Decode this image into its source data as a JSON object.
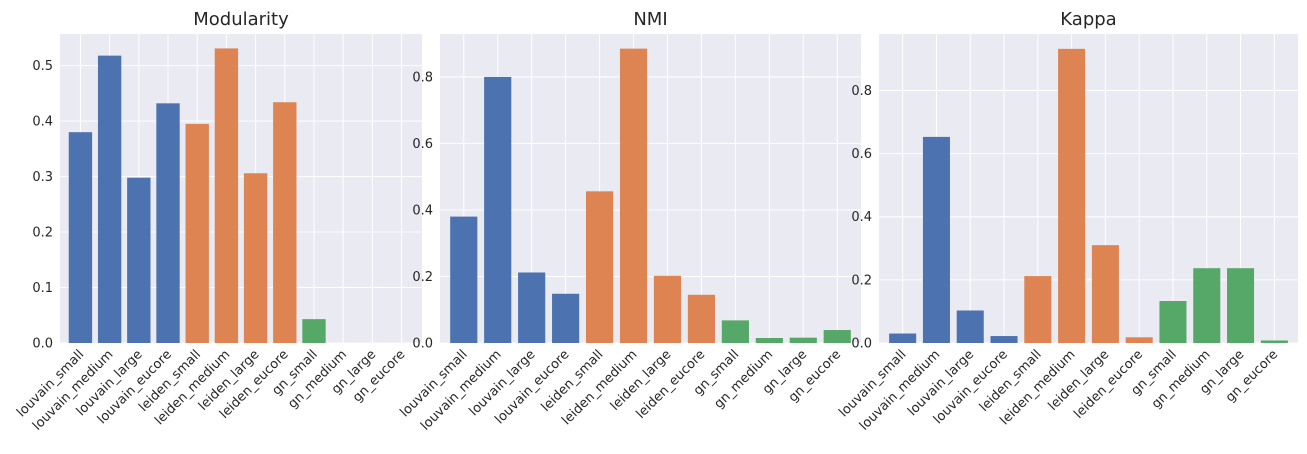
{
  "colors": {
    "plot_background": "#eaeaf2",
    "grid": "#ffffff",
    "louvain": "#4c72b0",
    "leiden": "#dd8452",
    "gn": "#55a868"
  },
  "chart_data": [
    {
      "type": "bar",
      "title": "Modularity",
      "xlabel": "",
      "ylabel": "",
      "categories": [
        "louvain_small",
        "louvain_medium",
        "louvain_large",
        "louvain_eucore",
        "leiden_small",
        "leiden_medium",
        "leiden_large",
        "leiden_eucore",
        "gn_small",
        "gn_medium",
        "gn_large",
        "gn_eucore"
      ],
      "values": [
        0.38,
        0.518,
        0.298,
        0.432,
        0.395,
        0.531,
        0.306,
        0.434,
        0.043,
        0.0,
        0.0,
        0.0
      ],
      "bar_colors": [
        "louvain",
        "louvain",
        "louvain",
        "louvain",
        "leiden",
        "leiden",
        "leiden",
        "leiden",
        "gn",
        "gn",
        "gn",
        "gn"
      ],
      "ylim": [
        0,
        0.557
      ],
      "yticks": [
        0.0,
        0.1,
        0.2,
        0.3,
        0.4,
        0.5
      ],
      "grid": true
    },
    {
      "type": "bar",
      "title": "NMI",
      "xlabel": "",
      "ylabel": "",
      "categories": [
        "louvain_small",
        "louvain_medium",
        "louvain_large",
        "louvain_eucore",
        "leiden_small",
        "leiden_medium",
        "leiden_large",
        "leiden_eucore",
        "gn_small",
        "gn_medium",
        "gn_large",
        "gn_eucore"
      ],
      "values": [
        0.38,
        0.8,
        0.212,
        0.148,
        0.456,
        0.885,
        0.202,
        0.145,
        0.068,
        0.015,
        0.016,
        0.039
      ],
      "bar_colors": [
        "louvain",
        "louvain",
        "louvain",
        "louvain",
        "leiden",
        "leiden",
        "leiden",
        "leiden",
        "gn",
        "gn",
        "gn",
        "gn"
      ],
      "ylim": [
        0,
        0.929
      ],
      "yticks": [
        0.0,
        0.2,
        0.4,
        0.6,
        0.8
      ],
      "grid": true
    },
    {
      "type": "bar",
      "title": "Kappa",
      "xlabel": "",
      "ylabel": "",
      "categories": [
        "louvain_small",
        "louvain_medium",
        "louvain_large",
        "louvain_eucore",
        "leiden_small",
        "leiden_medium",
        "leiden_large",
        "leiden_eucore",
        "gn_small",
        "gn_medium",
        "gn_large",
        "gn_eucore"
      ],
      "values": [
        0.03,
        0.653,
        0.103,
        0.022,
        0.212,
        0.932,
        0.31,
        0.018,
        0.133,
        0.237,
        0.237,
        0.008
      ],
      "bar_colors": [
        "louvain",
        "louvain",
        "louvain",
        "louvain",
        "leiden",
        "leiden",
        "leiden",
        "leiden",
        "gn",
        "gn",
        "gn",
        "gn"
      ],
      "ylim": [
        0,
        0.979
      ],
      "yticks": [
        0.0,
        0.2,
        0.4,
        0.6,
        0.8
      ],
      "grid": true
    }
  ]
}
